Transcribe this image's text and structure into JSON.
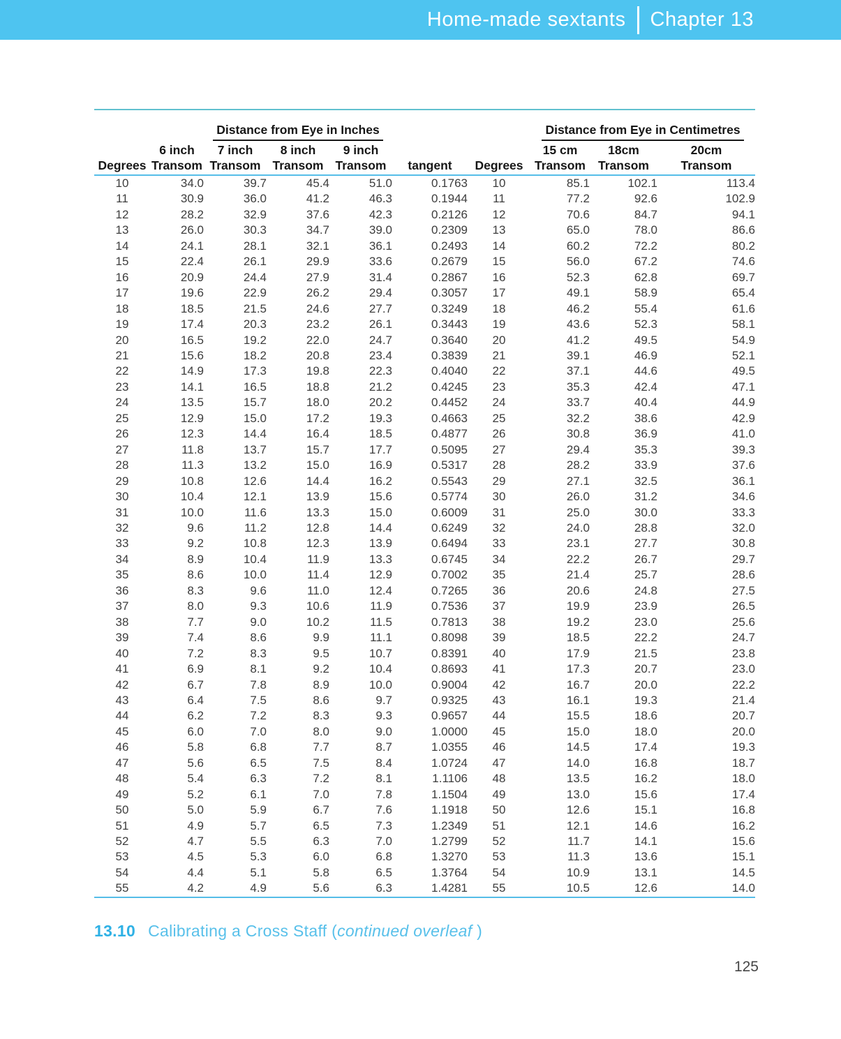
{
  "header": {
    "section": "Home-made sextants",
    "chapter": "Chapter 13"
  },
  "table": {
    "group_inches": "Distance from Eye in Inches",
    "group_cm": "Distance from Eye in Centimetres",
    "col_line1": [
      "",
      "6 inch",
      "7 inch",
      "8 inch",
      "9 inch",
      "",
      "",
      "15 cm",
      "18cm",
      "20cm"
    ],
    "col_line2": [
      "Degrees",
      "Transom",
      "Transom",
      "Transom",
      "Transom",
      "tangent",
      "Degrees",
      "Transom",
      "Transom",
      "Transom"
    ],
    "rows": [
      [
        "10",
        "34.0",
        "39.7",
        "45.4",
        "51.0",
        "0.1763",
        "10",
        "85.1",
        "102.1",
        "113.4"
      ],
      [
        "11",
        "30.9",
        "36.0",
        "41.2",
        "46.3",
        "0.1944",
        "11",
        "77.2",
        "92.6",
        "102.9"
      ],
      [
        "12",
        "28.2",
        "32.9",
        "37.6",
        "42.3",
        "0.2126",
        "12",
        "70.6",
        "84.7",
        "94.1"
      ],
      [
        "13",
        "26.0",
        "30.3",
        "34.7",
        "39.0",
        "0.2309",
        "13",
        "65.0",
        "78.0",
        "86.6"
      ],
      [
        "14",
        "24.1",
        "28.1",
        "32.1",
        "36.1",
        "0.2493",
        "14",
        "60.2",
        "72.2",
        "80.2"
      ],
      [
        "15",
        "22.4",
        "26.1",
        "29.9",
        "33.6",
        "0.2679",
        "15",
        "56.0",
        "67.2",
        "74.6"
      ],
      [
        "16",
        "20.9",
        "24.4",
        "27.9",
        "31.4",
        "0.2867",
        "16",
        "52.3",
        "62.8",
        "69.7"
      ],
      [
        "17",
        "19.6",
        "22.9",
        "26.2",
        "29.4",
        "0.3057",
        "17",
        "49.1",
        "58.9",
        "65.4"
      ],
      [
        "18",
        "18.5",
        "21.5",
        "24.6",
        "27.7",
        "0.3249",
        "18",
        "46.2",
        "55.4",
        "61.6"
      ],
      [
        "19",
        "17.4",
        "20.3",
        "23.2",
        "26.1",
        "0.3443",
        "19",
        "43.6",
        "52.3",
        "58.1"
      ],
      [
        "20",
        "16.5",
        "19.2",
        "22.0",
        "24.7",
        "0.3640",
        "20",
        "41.2",
        "49.5",
        "54.9"
      ],
      [
        "21",
        "15.6",
        "18.2",
        "20.8",
        "23.4",
        "0.3839",
        "21",
        "39.1",
        "46.9",
        "52.1"
      ],
      [
        "22",
        "14.9",
        "17.3",
        "19.8",
        "22.3",
        "0.4040",
        "22",
        "37.1",
        "44.6",
        "49.5"
      ],
      [
        "23",
        "14.1",
        "16.5",
        "18.8",
        "21.2",
        "0.4245",
        "23",
        "35.3",
        "42.4",
        "47.1"
      ],
      [
        "24",
        "13.5",
        "15.7",
        "18.0",
        "20.2",
        "0.4452",
        "24",
        "33.7",
        "40.4",
        "44.9"
      ],
      [
        "25",
        "12.9",
        "15.0",
        "17.2",
        "19.3",
        "0.4663",
        "25",
        "32.2",
        "38.6",
        "42.9"
      ],
      [
        "26",
        "12.3",
        "14.4",
        "16.4",
        "18.5",
        "0.4877",
        "26",
        "30.8",
        "36.9",
        "41.0"
      ],
      [
        "27",
        "11.8",
        "13.7",
        "15.7",
        "17.7",
        "0.5095",
        "27",
        "29.4",
        "35.3",
        "39.3"
      ],
      [
        "28",
        "11.3",
        "13.2",
        "15.0",
        "16.9",
        "0.5317",
        "28",
        "28.2",
        "33.9",
        "37.6"
      ],
      [
        "29",
        "10.8",
        "12.6",
        "14.4",
        "16.2",
        "0.5543",
        "29",
        "27.1",
        "32.5",
        "36.1"
      ],
      [
        "30",
        "10.4",
        "12.1",
        "13.9",
        "15.6",
        "0.5774",
        "30",
        "26.0",
        "31.2",
        "34.6"
      ],
      [
        "31",
        "10.0",
        "11.6",
        "13.3",
        "15.0",
        "0.6009",
        "31",
        "25.0",
        "30.0",
        "33.3"
      ],
      [
        "32",
        "9.6",
        "11.2",
        "12.8",
        "14.4",
        "0.6249",
        "32",
        "24.0",
        "28.8",
        "32.0"
      ],
      [
        "33",
        "9.2",
        "10.8",
        "12.3",
        "13.9",
        "0.6494",
        "33",
        "23.1",
        "27.7",
        "30.8"
      ],
      [
        "34",
        "8.9",
        "10.4",
        "11.9",
        "13.3",
        "0.6745",
        "34",
        "22.2",
        "26.7",
        "29.7"
      ],
      [
        "35",
        "8.6",
        "10.0",
        "11.4",
        "12.9",
        "0.7002",
        "35",
        "21.4",
        "25.7",
        "28.6"
      ],
      [
        "36",
        "8.3",
        "9.6",
        "11.0",
        "12.4",
        "0.7265",
        "36",
        "20.6",
        "24.8",
        "27.5"
      ],
      [
        "37",
        "8.0",
        "9.3",
        "10.6",
        "11.9",
        "0.7536",
        "37",
        "19.9",
        "23.9",
        "26.5"
      ],
      [
        "38",
        "7.7",
        "9.0",
        "10.2",
        "11.5",
        "0.7813",
        "38",
        "19.2",
        "23.0",
        "25.6"
      ],
      [
        "39",
        "7.4",
        "8.6",
        "9.9",
        "11.1",
        "0.8098",
        "39",
        "18.5",
        "22.2",
        "24.7"
      ],
      [
        "40",
        "7.2",
        "8.3",
        "9.5",
        "10.7",
        "0.8391",
        "40",
        "17.9",
        "21.5",
        "23.8"
      ],
      [
        "41",
        "6.9",
        "8.1",
        "9.2",
        "10.4",
        "0.8693",
        "41",
        "17.3",
        "20.7",
        "23.0"
      ],
      [
        "42",
        "6.7",
        "7.8",
        "8.9",
        "10.0",
        "0.9004",
        "42",
        "16.7",
        "20.0",
        "22.2"
      ],
      [
        "43",
        "6.4",
        "7.5",
        "8.6",
        "9.7",
        "0.9325",
        "43",
        "16.1",
        "19.3",
        "21.4"
      ],
      [
        "44",
        "6.2",
        "7.2",
        "8.3",
        "9.3",
        "0.9657",
        "44",
        "15.5",
        "18.6",
        "20.7"
      ],
      [
        "45",
        "6.0",
        "7.0",
        "8.0",
        "9.0",
        "1.0000",
        "45",
        "15.0",
        "18.0",
        "20.0"
      ],
      [
        "46",
        "5.8",
        "6.8",
        "7.7",
        "8.7",
        "1.0355",
        "46",
        "14.5",
        "17.4",
        "19.3"
      ],
      [
        "47",
        "5.6",
        "6.5",
        "7.5",
        "8.4",
        "1.0724",
        "47",
        "14.0",
        "16.8",
        "18.7"
      ],
      [
        "48",
        "5.4",
        "6.3",
        "7.2",
        "8.1",
        "1.1106",
        "48",
        "13.5",
        "16.2",
        "18.0"
      ],
      [
        "49",
        "5.2",
        "6.1",
        "7.0",
        "7.8",
        "1.1504",
        "49",
        "13.0",
        "15.6",
        "17.4"
      ],
      [
        "50",
        "5.0",
        "5.9",
        "6.7",
        "7.6",
        "1.1918",
        "50",
        "12.6",
        "15.1",
        "16.8"
      ],
      [
        "51",
        "4.9",
        "5.7",
        "6.5",
        "7.3",
        "1.2349",
        "51",
        "12.1",
        "14.6",
        "16.2"
      ],
      [
        "52",
        "4.7",
        "5.5",
        "6.3",
        "7.0",
        "1.2799",
        "52",
        "11.7",
        "14.1",
        "15.6"
      ],
      [
        "53",
        "4.5",
        "5.3",
        "6.0",
        "6.8",
        "1.3270",
        "53",
        "11.3",
        "13.6",
        "15.1"
      ],
      [
        "54",
        "4.4",
        "5.1",
        "5.8",
        "6.5",
        "1.3764",
        "54",
        "10.9",
        "13.1",
        "14.5"
      ],
      [
        "55",
        "4.2",
        "4.9",
        "5.6",
        "6.3",
        "1.4281",
        "55",
        "10.5",
        "12.6",
        "14.0"
      ]
    ]
  },
  "caption": {
    "number": "13.10",
    "title": "Calibrating a Cross Staff (",
    "note_italic": "continued overleaf",
    "paren_close": " )"
  },
  "page_number": "125",
  "colors": {
    "header_bar": "#4ec4f0",
    "rule_teal": "#61c1cf",
    "rule_blue": "#55bde8",
    "caption_blue": "#58c0ea",
    "caption_number_blue": "#2fb1e5",
    "body_text": "#3d3d3d",
    "header_text": "#171717"
  }
}
